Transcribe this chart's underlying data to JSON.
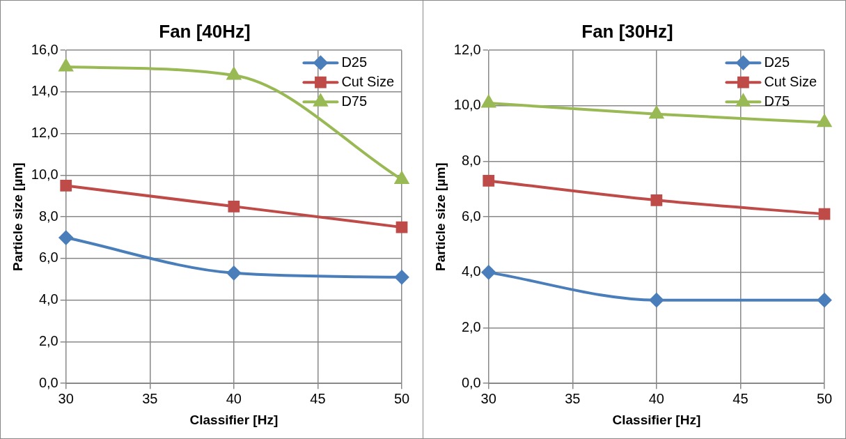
{
  "chart_data": [
    {
      "type": "line",
      "title": "Fan [40Hz]",
      "xlabel": "Classifier [Hz]",
      "ylabel": "Particle size [µm]",
      "x": [
        30,
        40,
        50
      ],
      "xlim": [
        30,
        50
      ],
      "xticks": [
        30,
        35,
        40,
        45,
        50
      ],
      "ylim": [
        0,
        16
      ],
      "yticks": [
        {
          "value": 0,
          "label": "0,0"
        },
        {
          "value": 2,
          "label": "2,0"
        },
        {
          "value": 4,
          "label": "4,0"
        },
        {
          "value": 6,
          "label": "6,0"
        },
        {
          "value": 8,
          "label": "8,0"
        },
        {
          "value": 10,
          "label": "10,0"
        },
        {
          "value": 12,
          "label": "12,0"
        },
        {
          "value": 14,
          "label": "14,0"
        },
        {
          "value": 16,
          "label": "16,0"
        }
      ],
      "grid": true,
      "legend": "top right",
      "series": [
        {
          "name": "D25",
          "color": "#4a7ebb",
          "marker": "diamond",
          "values": [
            7.0,
            5.3,
            5.1
          ]
        },
        {
          "name": "Cut Size",
          "color": "#be4b48",
          "marker": "square",
          "values": [
            9.5,
            8.5,
            7.5
          ]
        },
        {
          "name": "D75",
          "color": "#98b954",
          "marker": "triangle",
          "values": [
            15.2,
            14.8,
            9.8
          ]
        }
      ]
    },
    {
      "type": "line",
      "title": "Fan [30Hz]",
      "xlabel": "Classifier [Hz]",
      "ylabel": "Particle size [µm]",
      "x": [
        30,
        40,
        50
      ],
      "xlim": [
        30,
        50
      ],
      "xticks": [
        30,
        35,
        40,
        45,
        50
      ],
      "ylim": [
        0,
        12
      ],
      "yticks": [
        {
          "value": 0,
          "label": "0,0"
        },
        {
          "value": 2,
          "label": "2,0"
        },
        {
          "value": 4,
          "label": "4,0"
        },
        {
          "value": 6,
          "label": "6,0"
        },
        {
          "value": 8,
          "label": "8,0"
        },
        {
          "value": 10,
          "label": "10,0"
        },
        {
          "value": 12,
          "label": "12,0"
        }
      ],
      "grid": true,
      "legend": "top right",
      "series": [
        {
          "name": "D25",
          "color": "#4a7ebb",
          "marker": "diamond",
          "values": [
            4.0,
            3.0,
            3.0
          ]
        },
        {
          "name": "Cut Size",
          "color": "#be4b48",
          "marker": "square",
          "values": [
            7.3,
            6.6,
            6.1
          ]
        },
        {
          "name": "D75",
          "color": "#98b954",
          "marker": "triangle",
          "values": [
            10.1,
            9.7,
            9.4
          ]
        }
      ]
    }
  ]
}
